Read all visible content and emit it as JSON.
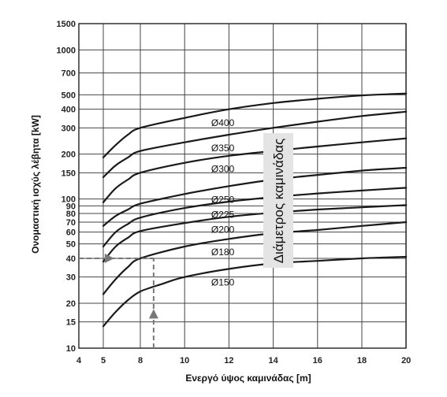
{
  "chart_data": {
    "type": "line",
    "xlabel": "Ενεργό ύψος καμινάδας [m]",
    "ylabel": "Ονομαστική ισχύς λέβητα [kW]",
    "side_label": "Διάμετρος καμινάδας",
    "xlim": [
      4,
      20
    ],
    "ylim": [
      10,
      1500
    ],
    "yscale": "log",
    "grid": true,
    "x_ticks": [
      4,
      5,
      8,
      10,
      12,
      14,
      16,
      18,
      20
    ],
    "y_ticks": [
      10,
      15,
      20,
      30,
      40,
      50,
      60,
      70,
      80,
      90,
      100,
      150,
      200,
      300,
      400,
      500,
      700,
      1000,
      1500
    ],
    "series": [
      {
        "name": "Ø400",
        "x": [
          5,
          6,
          7,
          8,
          10,
          12,
          14,
          16,
          18,
          20
        ],
        "y": [
          190,
          230,
          270,
          300,
          350,
          400,
          440,
          470,
          495,
          510
        ]
      },
      {
        "name": "Ø350",
        "x": [
          5,
          6,
          7,
          8,
          10,
          12,
          14,
          16,
          18,
          20
        ],
        "y": [
          140,
          168,
          190,
          210,
          240,
          270,
          300,
          330,
          360,
          385
        ]
      },
      {
        "name": "Ø300",
        "x": [
          5,
          6,
          7,
          8,
          10,
          12,
          14,
          16,
          18,
          20
        ],
        "y": [
          95,
          118,
          135,
          150,
          175,
          195,
          210,
          225,
          240,
          255
        ]
      },
      {
        "name": "Ø250",
        "x": [
          5,
          6,
          7,
          8,
          10,
          12,
          14,
          16,
          18,
          20
        ],
        "y": [
          66,
          77,
          85,
          93,
          108,
          122,
          135,
          145,
          155,
          162
        ]
      },
      {
        "name": "Ø225",
        "x": [
          5,
          6,
          7,
          8,
          10,
          12,
          14,
          16,
          18,
          20
        ],
        "y": [
          48,
          60,
          68,
          75,
          87,
          96,
          103,
          109,
          114,
          119
        ]
      },
      {
        "name": "Ø200",
        "x": [
          5,
          6,
          7,
          8,
          10,
          12,
          14,
          16,
          18,
          20
        ],
        "y": [
          38,
          48,
          55,
          61,
          69,
          76,
          81,
          85,
          88,
          91
        ]
      },
      {
        "name": "Ø180",
        "x": [
          5,
          6,
          7,
          8,
          10,
          12,
          14,
          16,
          18,
          20
        ],
        "y": [
          23,
          29,
          35,
          40,
          48,
          54,
          59,
          62,
          66,
          70
        ]
      },
      {
        "name": "Ø150",
        "x": [
          5,
          6,
          7,
          8,
          9,
          10,
          12,
          14,
          16,
          18,
          20
        ],
        "y": [
          14,
          17.5,
          21,
          24,
          27,
          30,
          34,
          37,
          38.5,
          40,
          41
        ]
      }
    ],
    "annotation": {
      "x": 8.6,
      "y": 40
    }
  }
}
